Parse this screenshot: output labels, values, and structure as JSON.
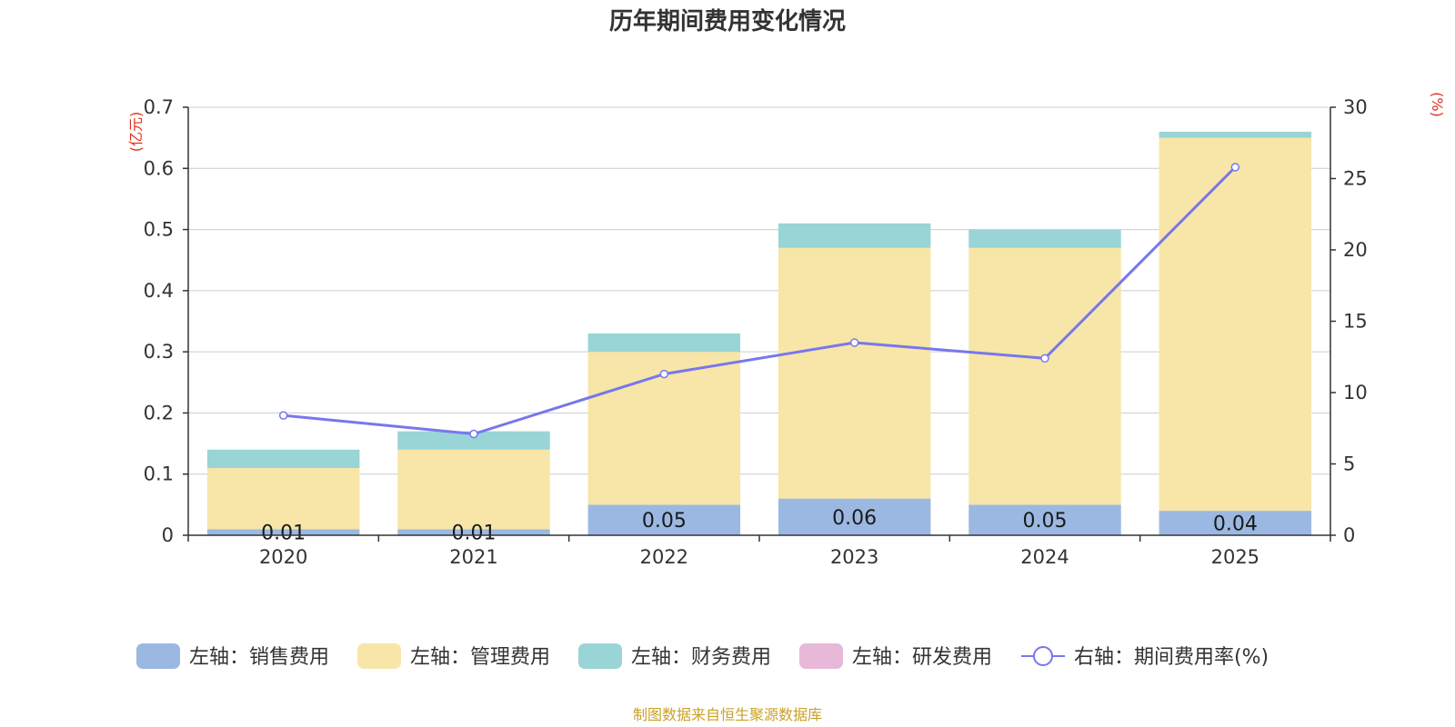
{
  "chart_data": {
    "type": "bar",
    "stacked": true,
    "title": "历年期间费用变化情况",
    "categories": [
      "2020",
      "2021",
      "2022",
      "2023",
      "2024",
      "2025"
    ],
    "left_axis": {
      "unit": "(亿元)",
      "ylim": [
        0,
        0.7
      ],
      "ticks": [
        "0",
        "0.1",
        "0.2",
        "0.3",
        "0.4",
        "0.5",
        "0.6",
        "0.7"
      ]
    },
    "right_axis": {
      "unit": "(%)",
      "ylim": [
        0,
        30
      ],
      "ticks": [
        "0",
        "5",
        "10",
        "15",
        "20",
        "25",
        "30"
      ]
    },
    "series": [
      {
        "name": "左轴：销售费用",
        "axis": "left",
        "kind": "bar",
        "color": "#9bb8e2",
        "values": [
          0.01,
          0.01,
          0.05,
          0.06,
          0.05,
          0.04
        ],
        "labels": [
          "0.01",
          "0.01",
          "0.05",
          "0.06",
          "0.05",
          "0.04"
        ]
      },
      {
        "name": "左轴：管理费用",
        "axis": "left",
        "kind": "bar",
        "color": "#f7e6a7",
        "values": [
          0.1,
          0.13,
          0.25,
          0.41,
          0.42,
          0.61
        ]
      },
      {
        "name": "左轴：财务费用",
        "axis": "left",
        "kind": "bar",
        "color": "#99d4d6",
        "values": [
          0.03,
          0.03,
          0.03,
          0.04,
          0.03,
          0.01
        ]
      },
      {
        "name": "左轴：研发费用",
        "axis": "left",
        "kind": "bar",
        "color": "#e8b8d8",
        "values": [
          0,
          0,
          0,
          0,
          0,
          0
        ]
      },
      {
        "name": "右轴：期间费用率(%)",
        "axis": "right",
        "kind": "line",
        "color": "#7777ee",
        "values": [
          8.4,
          7.1,
          11.3,
          13.5,
          12.4,
          25.8
        ]
      }
    ],
    "source": "制图数据来自恒生聚源数据库"
  },
  "colors": {
    "axis_unit": "#e0301e",
    "source": "#c9a227",
    "grid": "#cccccc",
    "axis": "#333333"
  }
}
